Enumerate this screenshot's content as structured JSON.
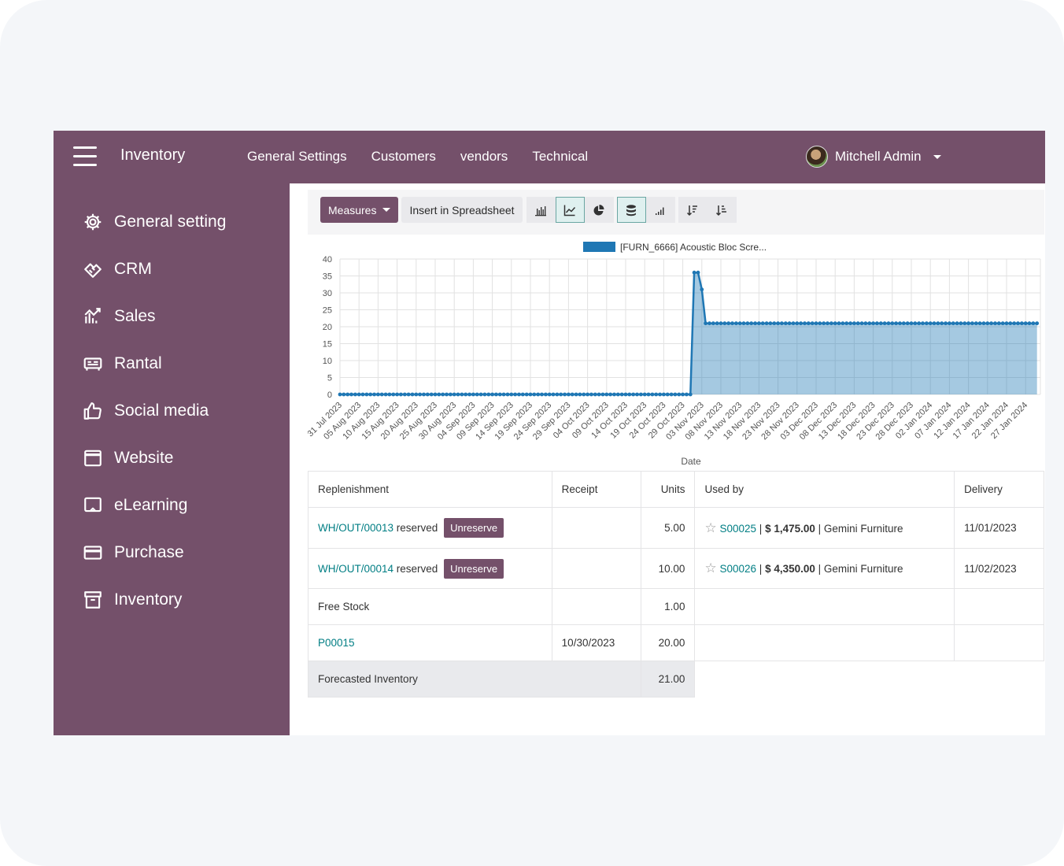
{
  "topbar": {
    "app_title": "Inventory",
    "nav": [
      "General Settings",
      "Customers",
      "vendors",
      "Technical"
    ],
    "user_name": "Mitchell Admin"
  },
  "sidebar": {
    "items": [
      {
        "label": "General setting",
        "icon": "gear-icon"
      },
      {
        "label": "CRM",
        "icon": "handshake-icon"
      },
      {
        "label": "Sales",
        "icon": "sales-chart-icon"
      },
      {
        "label": "Rantal",
        "icon": "rental-icon"
      },
      {
        "label": "Social media",
        "icon": "thumbs-up-icon"
      },
      {
        "label": "Website",
        "icon": "browser-icon"
      },
      {
        "label": "eLearning",
        "icon": "presentation-icon"
      },
      {
        "label": "Purchase",
        "icon": "credit-card-icon"
      },
      {
        "label": "Inventory",
        "icon": "archive-box-icon"
      }
    ]
  },
  "toolbar": {
    "measures_label": "Measures",
    "spreadsheet_label": "Insert in Spreadsheet",
    "view_buttons": [
      "bar-chart-icon",
      "line-chart-icon",
      "pie-chart-icon",
      "stacked-icon",
      "cumulative-icon",
      "sort-descending-icon",
      "sort-ascending-icon"
    ]
  },
  "chart_data": {
    "type": "area",
    "legend": "[FURN_6666] Acoustic Bloc Scre...",
    "xlabel": "Date",
    "ylim": [
      0,
      40
    ],
    "yticks": [
      0,
      5,
      10,
      15,
      20,
      25,
      30,
      35,
      40
    ],
    "x_tick_labels": [
      "31 Jul 2023",
      "05 Aug 2023",
      "10 Aug 2023",
      "15 Aug 2023",
      "20 Aug 2023",
      "25 Aug 2023",
      "30 Aug 2023",
      "04 Sep 2023",
      "09 Sep 2023",
      "14 Sep 2023",
      "19 Sep 2023",
      "24 Sep 2023",
      "29 Sep 2023",
      "04 Oct 2023",
      "09 Oct 2023",
      "14 Oct 2023",
      "19 Oct 2023",
      "24 Oct 2023",
      "29 Oct 2023",
      "03 Nov 2023",
      "08 Nov 2023",
      "13 Nov 2023",
      "18 Nov 2023",
      "23 Nov 2023",
      "28 Nov 2023",
      "03 Dec 2023",
      "08 Dec 2023",
      "13 Dec 2023",
      "18 Dec 2023",
      "23 Dec 2023",
      "28 Dec 2023",
      "02 Jan 2024",
      "07 Jan 2024",
      "12 Jan 2024",
      "17 Jan 2024",
      "22 Jan 2024",
      "27 Jan 2024"
    ],
    "series": [
      {
        "name": "[FURN_6666] Acoustic Bloc Scre...",
        "color": "#1f77b4",
        "segments": [
          {
            "from": "31 Jul 2023",
            "to": "31 Oct 2023",
            "value": 0
          },
          {
            "date": "01 Nov 2023",
            "value": 36
          },
          {
            "date": "02 Nov 2023",
            "value": 36
          },
          {
            "date": "03 Nov 2023",
            "value": 31
          },
          {
            "from": "04 Nov 2023",
            "to": "30 Jan 2024",
            "value": 21
          }
        ]
      }
    ],
    "grid": true
  },
  "table": {
    "headers": {
      "replenishment": "Replenishment",
      "receipt": "Receipt",
      "units": "Units",
      "used_by": "Used by",
      "delivery": "Delivery"
    },
    "rows": [
      {
        "ref": "WH/OUT/00013",
        "status": "reserved",
        "action": "Unreserve",
        "receipt": "",
        "units": "5.00",
        "order": "S00025",
        "amount": "$ 1,475.00",
        "customer": "Gemini Furniture",
        "delivery": "11/01/2023"
      },
      {
        "ref": "WH/OUT/00014",
        "status": "reserved",
        "action": "Unreserve",
        "receipt": "",
        "units": "10.00",
        "order": "S00026",
        "amount": "$ 4,350.00",
        "customer": "Gemini Furniture",
        "delivery": "11/02/2023"
      }
    ],
    "free_stock": {
      "label": "Free Stock",
      "units": "1.00"
    },
    "purchase": {
      "ref": "P00015",
      "receipt": "10/30/2023",
      "units": "20.00"
    },
    "total": {
      "label": "Forecasted Inventory",
      "units": "21.00"
    },
    "separator": "|"
  }
}
